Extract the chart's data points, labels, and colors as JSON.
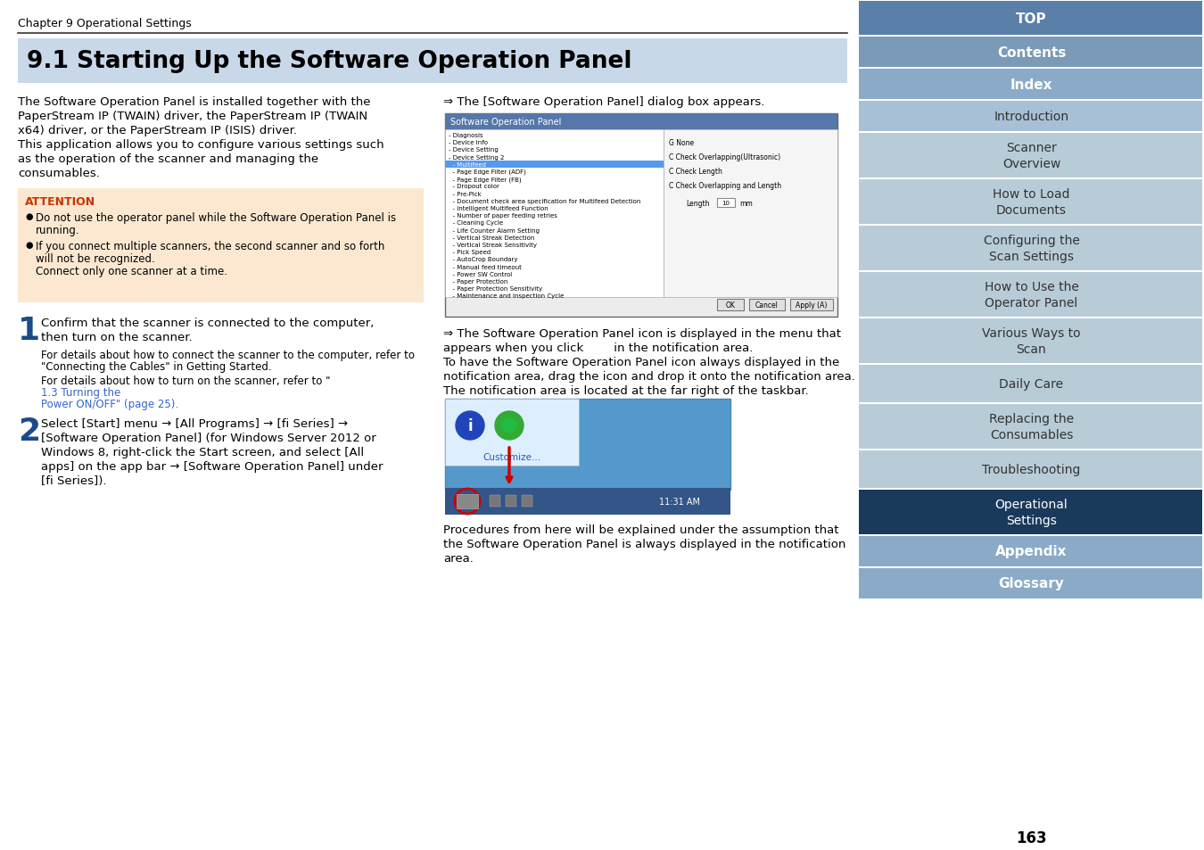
{
  "page_bg": "#ffffff",
  "chapter_text": "Chapter 9 Operational Settings",
  "title_text": "9.1 Starting Up the Software Operation Panel",
  "title_bg": "#c8d8e8",
  "attention_bg": "#fce8d0",
  "attention_title_color": "#cc3300",
  "link_color": "#3366cc",
  "sidebar_items": [
    {
      "text": "TOP",
      "bg": "#5a7fa8",
      "text_color": "#ffffff",
      "bold": true
    },
    {
      "text": "Contents",
      "bg": "#7a9ab8",
      "text_color": "#ffffff",
      "bold": true
    },
    {
      "text": "Index",
      "bg": "#8aaac8",
      "text_color": "#ffffff",
      "bold": true
    },
    {
      "text": "Introduction",
      "bg": "#a8c0d5",
      "text_color": "#333333",
      "bold": false
    },
    {
      "text": "Scanner\nOverview",
      "bg": "#b8ccd8",
      "text_color": "#333333",
      "bold": false
    },
    {
      "text": "How to Load\nDocuments",
      "bg": "#b8ccd8",
      "text_color": "#333333",
      "bold": false
    },
    {
      "text": "Configuring the\nScan Settings",
      "bg": "#b8ccd8",
      "text_color": "#333333",
      "bold": false
    },
    {
      "text": "How to Use the\nOperator Panel",
      "bg": "#b8ccd8",
      "text_color": "#333333",
      "bold": false
    },
    {
      "text": "Various Ways to\nScan",
      "bg": "#b8ccd8",
      "text_color": "#333333",
      "bold": false
    },
    {
      "text": "Daily Care",
      "bg": "#b8ccd8",
      "text_color": "#333333",
      "bold": false
    },
    {
      "text": "Replacing the\nConsumables",
      "bg": "#b8ccd8",
      "text_color": "#333333",
      "bold": false
    },
    {
      "text": "Troubleshooting",
      "bg": "#b8ccd8",
      "text_color": "#333333",
      "bold": false
    },
    {
      "text": "Operational\nSettings",
      "bg": "#1a3a5c",
      "text_color": "#ffffff",
      "bold": false
    },
    {
      "text": "Appendix",
      "bg": "#8aaac8",
      "text_color": "#ffffff",
      "bold": true
    },
    {
      "text": "Glossary",
      "bg": "#8aaac8",
      "text_color": "#ffffff",
      "bold": true
    }
  ],
  "page_number": "163"
}
